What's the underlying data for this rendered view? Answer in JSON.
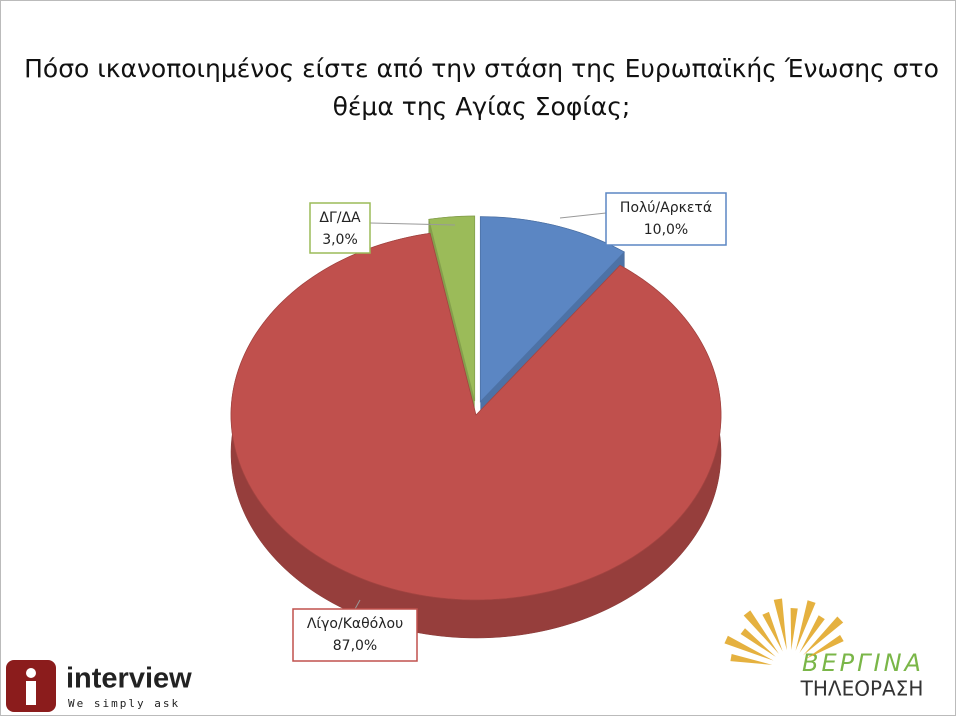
{
  "chart_data": {
    "type": "pie",
    "title": "Πόσο ικανοποιημένος είστε από την στάση της Ευρωπαϊκής Ένωσης στο θέμα της Αγίας Σοφίας;",
    "categories": [
      "Πολύ/Αρκετά",
      "Λίγο/Καθόλου",
      "ΔΓ/ΔΑ"
    ],
    "values": [
      10,
      87,
      3
    ],
    "value_labels": [
      "10,0%",
      "87,0%",
      "3,0%"
    ],
    "colors": [
      "#5b86c3",
      "#c0504d",
      "#9bbb59"
    ]
  },
  "logos": {
    "left": {
      "name": "interview",
      "tagline": "We simply ask"
    },
    "right": {
      "name": "ΒΕΡΓΙΝΑ",
      "subtitle": "ΤΗΛΕΟΡΑΣΗ"
    }
  }
}
